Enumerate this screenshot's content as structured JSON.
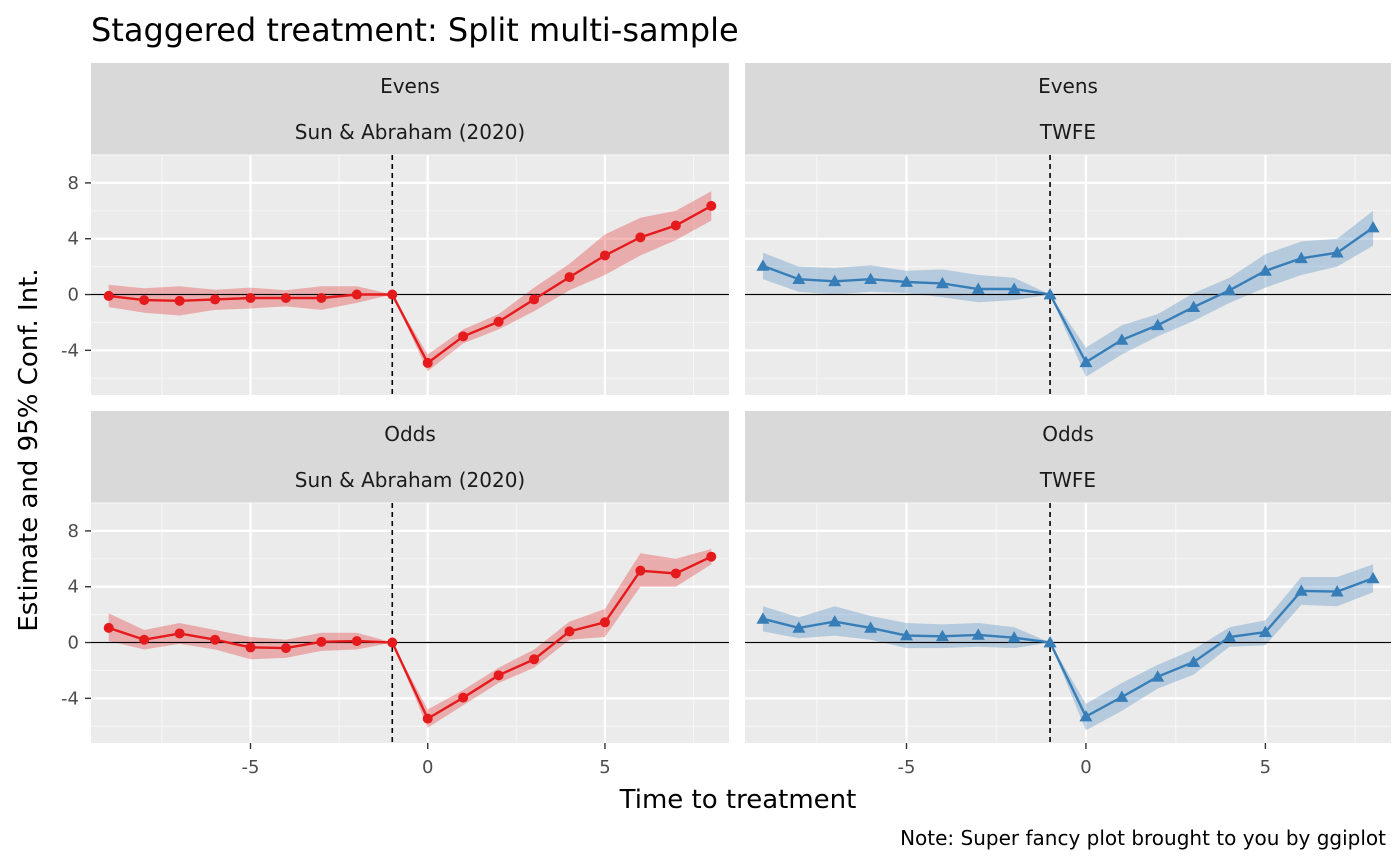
{
  "chart_data": {
    "type": "line",
    "title": "Staggered treatment: Split multi-sample",
    "xlabel": "Time to treatment",
    "ylabel": "Estimate and 95% Conf. Int.",
    "caption": "Note: Super fancy plot brought to you by ggiplot",
    "xlim": [
      -9.5,
      8.5
    ],
    "ylim": [
      -7.2,
      10
    ],
    "x_ticks": [
      -5,
      0,
      5
    ],
    "y_ticks": [
      -4,
      0,
      4,
      8
    ],
    "reference_x": -1,
    "reference_y": 0,
    "colors": {
      "sun_abraham": "#e41a1c",
      "twfe": "#377eb8"
    },
    "panels": [
      {
        "strip_top": "Evens",
        "strip_bottom": "Sun & Abraham (2020)",
        "marker": "circle",
        "color": "#e41a1c",
        "x": [
          -9,
          -8,
          -7,
          -6,
          -5,
          -4,
          -3,
          -2,
          -1,
          0,
          1,
          2,
          3,
          4,
          5,
          6,
          7,
          8
        ],
        "y": [
          -0.1,
          -0.4,
          -0.45,
          -0.35,
          -0.25,
          -0.25,
          -0.25,
          0.0,
          0.0,
          -4.9,
          -3.0,
          -1.95,
          -0.35,
          1.25,
          2.8,
          4.1,
          4.95,
          6.35
        ],
        "lower": [
          -0.9,
          -1.3,
          -1.5,
          -1.1,
          -1.0,
          -0.85,
          -1.1,
          -0.6,
          0.0,
          -5.5,
          -3.5,
          -2.5,
          -1.2,
          0.3,
          1.4,
          2.8,
          3.9,
          5.3
        ],
        "upper": [
          0.7,
          0.45,
          0.6,
          0.35,
          0.5,
          0.3,
          0.6,
          0.6,
          0.0,
          -4.3,
          -2.5,
          -1.4,
          0.5,
          2.2,
          4.3,
          5.5,
          6.0,
          7.4
        ]
      },
      {
        "strip_top": "Evens",
        "strip_bottom": "TWFE",
        "marker": "triangle",
        "color": "#377eb8",
        "x": [
          -9,
          -8,
          -7,
          -6,
          -5,
          -4,
          -3,
          -2,
          -1,
          0,
          1,
          2,
          3,
          4,
          5,
          6,
          7,
          8
        ],
        "y": [
          2.05,
          1.1,
          0.95,
          1.1,
          0.9,
          0.8,
          0.4,
          0.4,
          0.0,
          -4.85,
          -3.25,
          -2.2,
          -0.9,
          0.3,
          1.7,
          2.6,
          3.0,
          4.8
        ],
        "lower": [
          1.1,
          0.2,
          0.0,
          0.2,
          0.1,
          -0.2,
          -0.55,
          -0.4,
          0.0,
          -5.9,
          -4.3,
          -3.0,
          -1.9,
          -0.6,
          0.5,
          1.4,
          2.0,
          3.5
        ],
        "upper": [
          3.0,
          2.0,
          1.9,
          2.1,
          1.7,
          1.8,
          1.4,
          1.2,
          0.0,
          -3.8,
          -2.2,
          -1.4,
          0.1,
          1.2,
          2.9,
          3.8,
          4.0,
          6.0
        ]
      },
      {
        "strip_top": "Odds",
        "strip_bottom": "Sun & Abraham (2020)",
        "marker": "circle",
        "color": "#e41a1c",
        "x": [
          -9,
          -8,
          -7,
          -6,
          -5,
          -4,
          -3,
          -2,
          -1,
          0,
          1,
          2,
          3,
          4,
          5,
          6,
          7,
          8
        ],
        "y": [
          1.05,
          0.2,
          0.65,
          0.2,
          -0.35,
          -0.4,
          0.05,
          0.1,
          0.0,
          -5.45,
          -3.95,
          -2.35,
          -1.2,
          0.8,
          1.45,
          5.15,
          4.95,
          6.15
        ],
        "lower": [
          0.1,
          -0.5,
          -0.1,
          -0.5,
          -1.2,
          -1.1,
          -0.6,
          -0.5,
          0.0,
          -6.1,
          -4.5,
          -2.9,
          -1.8,
          0.2,
          0.4,
          4.0,
          4.0,
          5.6
        ],
        "upper": [
          2.1,
          0.9,
          1.4,
          0.9,
          0.4,
          0.2,
          0.7,
          0.7,
          0.0,
          -4.8,
          -3.4,
          -1.8,
          -0.5,
          1.5,
          2.4,
          6.4,
          6.0,
          6.7
        ]
      },
      {
        "strip_top": "Odds",
        "strip_bottom": "TWFE",
        "marker": "triangle",
        "color": "#377eb8",
        "x": [
          -9,
          -8,
          -7,
          -6,
          -5,
          -4,
          -3,
          -2,
          -1,
          0,
          1,
          2,
          3,
          4,
          5,
          6,
          7,
          8
        ],
        "y": [
          1.7,
          1.05,
          1.5,
          1.05,
          0.5,
          0.45,
          0.55,
          0.35,
          0.0,
          -5.3,
          -3.9,
          -2.45,
          -1.4,
          0.4,
          0.75,
          3.7,
          3.65,
          4.6
        ],
        "lower": [
          0.8,
          0.3,
          0.5,
          0.2,
          -0.4,
          -0.4,
          -0.3,
          -0.4,
          0.0,
          -6.3,
          -4.9,
          -3.3,
          -2.3,
          -0.3,
          -0.2,
          2.7,
          2.6,
          3.6
        ],
        "upper": [
          2.6,
          1.8,
          2.6,
          1.9,
          1.4,
          1.3,
          1.4,
          1.1,
          0.0,
          -4.4,
          -2.9,
          -1.6,
          -0.5,
          1.1,
          1.6,
          4.7,
          4.7,
          5.6
        ]
      }
    ]
  }
}
